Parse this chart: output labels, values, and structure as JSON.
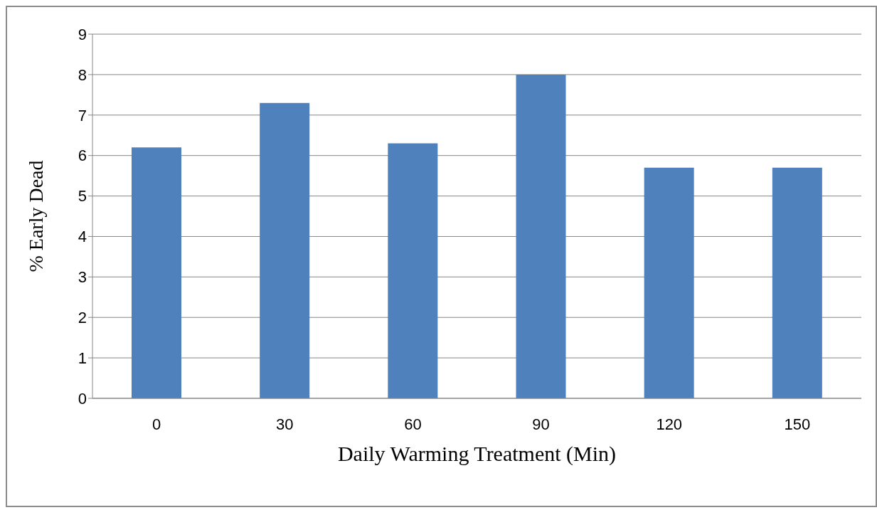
{
  "chart_data": {
    "type": "bar",
    "xlabel": "Daily Warming Treatment (Min)",
    "ylabel": "% Early Dead",
    "categories": [
      "0",
      "30",
      "60",
      "90",
      "120",
      "150"
    ],
    "values": [
      6.2,
      7.3,
      6.3,
      8.0,
      5.7,
      5.7
    ],
    "color": "#4f81bd",
    "ylim": [
      0,
      9
    ],
    "yticks": [
      0,
      1,
      2,
      3,
      4,
      5,
      6,
      7,
      8,
      9
    ],
    "grid": "y",
    "legend": false
  }
}
